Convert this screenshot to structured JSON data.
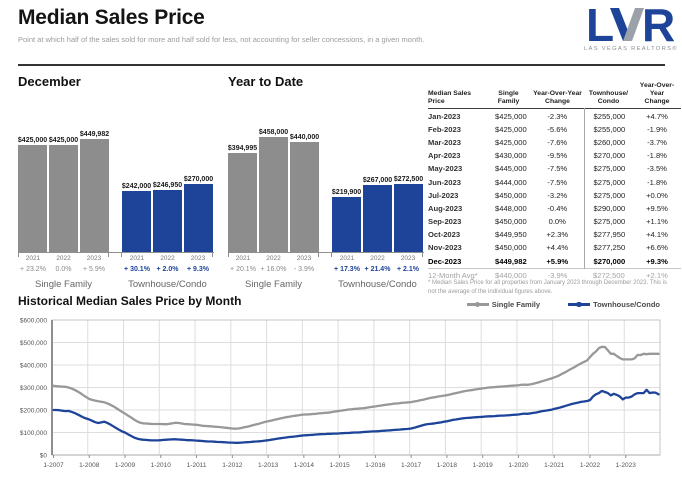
{
  "header": {
    "title": "Median Sales Price",
    "subtitle": "Point at which half of the sales sold for more and half sold for less, not accounting for seller concessions, in a given month.",
    "logo": {
      "text": "LVR",
      "tagline": "LAS VEGAS REALTORS®"
    }
  },
  "colors": {
    "brand_blue": "#1e4499",
    "bar_gray": "#8d8d8d",
    "line_gray": "#98989a"
  },
  "chart_data": [
    {
      "type": "bar",
      "id": "december",
      "title": "December",
      "ylim": [
        0,
        470000
      ],
      "groups": [
        {
          "label": "Single Family",
          "color": "#8d8d8d",
          "change_style": "gray",
          "years": [
            "2021",
            "2022",
            "2023"
          ],
          "values": [
            425000,
            425000,
            449982
          ],
          "value_labels": [
            "$425,000",
            "$425,000",
            "$449,982"
          ],
          "changes": [
            "+ 23.2%",
            "0.0%",
            "+ 5.9%"
          ]
        },
        {
          "label": "Townhouse/Condo",
          "color": "#1e4499",
          "change_style": "blue",
          "years": [
            "2021",
            "2022",
            "2023"
          ],
          "values": [
            242000,
            246950,
            270000
          ],
          "value_labels": [
            "$242,000",
            "$246,950",
            "$270,000"
          ],
          "changes": [
            "+ 30.1%",
            "+ 2.0%",
            "+ 9.3%"
          ]
        }
      ]
    },
    {
      "type": "bar",
      "id": "year-to-date",
      "title": "Year to Date",
      "ylim": [
        0,
        470000
      ],
      "groups": [
        {
          "label": "Single Family",
          "color": "#8d8d8d",
          "change_style": "gray",
          "years": [
            "2021",
            "2022",
            "2023"
          ],
          "values": [
            394995,
            458000,
            440000
          ],
          "value_labels": [
            "$394,995",
            "$458,000",
            "$440,000"
          ],
          "changes": [
            "+ 20.1%",
            "+ 16.0%",
            "- 3.9%"
          ]
        },
        {
          "label": "Townhouse/Condo",
          "color": "#1e4499",
          "change_style": "blue",
          "years": [
            "2021",
            "2022",
            "2023"
          ],
          "values": [
            219900,
            267000,
            272500
          ],
          "value_labels": [
            "$219,900",
            "$267,000",
            "$272,500"
          ],
          "changes": [
            "+ 17.3%",
            "+ 21.4%",
            "+ 2.1%"
          ]
        }
      ]
    },
    {
      "type": "line",
      "title": "Historical Median Sales Price by Month",
      "x_monthly_range": [
        "1-2007",
        "12-2023"
      ],
      "x_tick_labels": [
        "1-2007",
        "1-2008",
        "1-2009",
        "1-2010",
        "1-2011",
        "1-2012",
        "1-2013",
        "1-2014",
        "1-2015",
        "1-2016",
        "1-2017",
        "1-2018",
        "1-2019",
        "1-2020",
        "1-2021",
        "1-2022",
        "1-2023"
      ],
      "ylim": [
        0,
        600000
      ],
      "y_tick_labels": [
        "$0",
        "$100,000",
        "$200,000",
        "$300,000",
        "$400,000",
        "$500,000",
        "$600,000"
      ],
      "grid": true,
      "legend_position": "top-right",
      "series": [
        {
          "name": "Single Family",
          "color": "#98989a",
          "values": [
            308000,
            306000,
            305000,
            304000,
            303000,
            300000,
            296000,
            290000,
            283000,
            275000,
            266000,
            257000,
            249000,
            245000,
            242000,
            239000,
            237000,
            234000,
            230000,
            224000,
            217000,
            209000,
            200000,
            192000,
            184000,
            175000,
            167000,
            158000,
            150000,
            144000,
            141000,
            140000,
            139000,
            138000,
            138000,
            138000,
            138000,
            137000,
            137000,
            139000,
            141000,
            143000,
            142000,
            140000,
            138000,
            137000,
            136000,
            135000,
            134000,
            132000,
            130000,
            129000,
            128000,
            127000,
            126000,
            125000,
            124000,
            122000,
            121000,
            119000,
            118000,
            117000,
            118000,
            120000,
            123000,
            126000,
            129000,
            133000,
            136000,
            139000,
            143000,
            147000,
            150000,
            153000,
            156000,
            159000,
            162000,
            165000,
            168000,
            170000,
            172000,
            174000,
            176000,
            178000,
            180000,
            180000,
            181000,
            182000,
            183000,
            185000,
            186000,
            187000,
            188000,
            190000,
            192000,
            194000,
            196000,
            198000,
            200000,
            202000,
            203000,
            205000,
            206000,
            207000,
            208000,
            210000,
            212000,
            214000,
            216000,
            218000,
            220000,
            222000,
            224000,
            226000,
            228000,
            229000,
            230000,
            232000,
            233000,
            234000,
            235000,
            238000,
            240000,
            243000,
            246000,
            249000,
            252000,
            255000,
            257000,
            260000,
            262000,
            264000,
            266000,
            269000,
            272000,
            275000,
            278000,
            281000,
            284000,
            286000,
            288000,
            290000,
            292000,
            294000,
            296000,
            298000,
            300000,
            301000,
            302000,
            303000,
            304000,
            305000,
            306000,
            307000,
            308000,
            309000,
            310000,
            312000,
            313000,
            312000,
            314000,
            317000,
            320000,
            324000,
            328000,
            332000,
            336000,
            340000,
            345000,
            350000,
            356000,
            363000,
            370000,
            378000,
            385000,
            392000,
            400000,
            407000,
            414000,
            420000,
            435000,
            450000,
            460000,
            475000,
            481000,
            480000,
            465000,
            450000,
            450000,
            440000,
            431000,
            425000,
            425000,
            425000,
            425000,
            430000,
            445000,
            444000,
            450000,
            448000,
            450000,
            449950,
            450000,
            449982
          ]
        },
        {
          "name": "Townhouse/Condo",
          "color": "#1e4499",
          "values": [
            200000,
            200000,
            199000,
            197000,
            195000,
            196000,
            192000,
            187000,
            181000,
            174000,
            167000,
            162000,
            158000,
            152000,
            146000,
            142000,
            145000,
            148000,
            143000,
            136000,
            128000,
            120000,
            112000,
            105000,
            100000,
            92000,
            85000,
            78000,
            73000,
            70000,
            68000,
            67000,
            66000,
            65000,
            65000,
            65000,
            66000,
            67000,
            68000,
            69000,
            70000,
            70000,
            69000,
            68000,
            67000,
            66000,
            66000,
            65000,
            64000,
            63000,
            62000,
            61000,
            60000,
            60000,
            59000,
            58000,
            58000,
            57000,
            56000,
            55000,
            55000,
            54000,
            54000,
            55000,
            56000,
            57000,
            58000,
            59000,
            60000,
            61000,
            62000,
            64000,
            66000,
            68000,
            70000,
            72000,
            74000,
            76000,
            78000,
            80000,
            81000,
            82000,
            84000,
            86000,
            87000,
            88000,
            89000,
            90000,
            91000,
            92000,
            93000,
            93000,
            94000,
            94000,
            95000,
            95000,
            96000,
            97000,
            98000,
            98000,
            99000,
            100000,
            100000,
            101000,
            102000,
            103000,
            104000,
            105000,
            105000,
            106000,
            107000,
            108000,
            109000,
            110000,
            111000,
            112000,
            113000,
            114000,
            115000,
            116000,
            118000,
            121000,
            125000,
            129000,
            133000,
            136000,
            138000,
            139000,
            141000,
            143000,
            145000,
            148000,
            150000,
            153000,
            156000,
            158000,
            160000,
            162000,
            164000,
            165000,
            166000,
            167000,
            168000,
            169000,
            170000,
            171000,
            172000,
            172000,
            173000,
            174000,
            175000,
            175000,
            176000,
            177000,
            178000,
            179000,
            180000,
            182000,
            184000,
            183000,
            185000,
            187000,
            189000,
            192000,
            195000,
            197000,
            199000,
            201000,
            205000,
            208000,
            211000,
            215000,
            219000,
            223000,
            227000,
            230000,
            233000,
            236000,
            238000,
            240000,
            244000,
            260000,
            270000,
            275000,
            285000,
            280000,
            275000,
            265000,
            272000,
            267000,
            260000,
            247000,
            255000,
            255000,
            260000,
            270000,
            275000,
            275000,
            275000,
            290000,
            275000,
            277950,
            277250,
            270000
          ]
        }
      ]
    }
  ],
  "table": {
    "headers": [
      "Median Sales Price",
      "Single\nFamily",
      "Year-Over-Year\nChange",
      "Townhouse/\nCondo",
      "Year-Over-Year\nChange"
    ],
    "rows": [
      [
        "Jan-2023",
        "$425,000",
        "-2.3%",
        "$255,000",
        "+4.7%"
      ],
      [
        "Feb-2023",
        "$425,000",
        "-5.6%",
        "$255,000",
        "-1.9%"
      ],
      [
        "Mar-2023",
        "$425,000",
        "-7.6%",
        "$260,000",
        "-3.7%"
      ],
      [
        "Apr-2023",
        "$430,000",
        "-9.5%",
        "$270,000",
        "-1.8%"
      ],
      [
        "May-2023",
        "$445,000",
        "-7.5%",
        "$275,000",
        "-3.5%"
      ],
      [
        "Jun-2023",
        "$444,000",
        "-7.5%",
        "$275,000",
        "-1.8%"
      ],
      [
        "Jul-2023",
        "$450,000",
        "-3.2%",
        "$275,000",
        "+0.0%"
      ],
      [
        "Aug-2023",
        "$448,000",
        "-0.4%",
        "$290,000",
        "+9.5%"
      ],
      [
        "Sep-2023",
        "$450,000",
        "0.0%",
        "$275,000",
        "+1.1%"
      ],
      [
        "Oct-2023",
        "$449,950",
        "+2.3%",
        "$277,950",
        "+4.1%"
      ],
      [
        "Nov-2023",
        "$450,000",
        "+4.4%",
        "$277,250",
        "+6.6%"
      ],
      [
        "Dec-2023",
        "$449,982",
        "+5.9%",
        "$270,000",
        "+9.3%"
      ]
    ],
    "bold_row_index": 11,
    "avg_row": [
      "12-Month Avg*",
      "$440,000",
      "-3.9%",
      "$272,500",
      "+2.1%"
    ],
    "footnote": "* Median Sales Price for all properties from January 2023 through December 2023. This is not the average of the individual figures above."
  }
}
